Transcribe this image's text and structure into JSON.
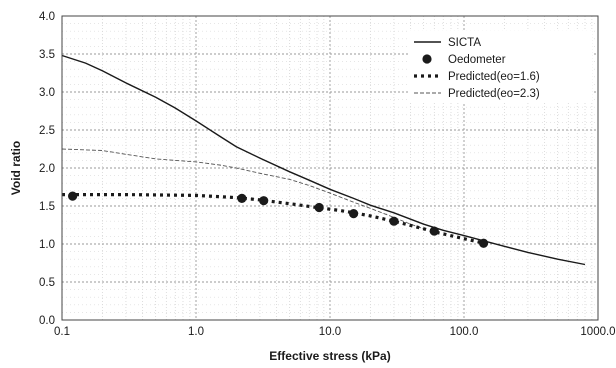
{
  "chart_data": {
    "type": "line",
    "title": "",
    "xlabel": "Effective stress (kPa)",
    "ylabel": "Void ratio",
    "xscale": "log",
    "xlim": [
      0.1,
      1000.0
    ],
    "ylim": [
      0.0,
      4.0
    ],
    "x_ticks": [
      "0.1",
      "1.0",
      "10.0",
      "100.0",
      "1000.0"
    ],
    "y_ticks": [
      "0.0",
      "0.5",
      "1.0",
      "1.5",
      "2.0",
      "2.5",
      "3.0",
      "3.5",
      "4.0"
    ],
    "grid": true,
    "legend_position": "top-right",
    "series": [
      {
        "name": "SICTA",
        "style": "solid",
        "color": "#1a1a1a",
        "x": [
          0.1,
          0.15,
          0.2,
          0.3,
          0.5,
          0.7,
          1.0,
          1.5,
          2.0,
          3.0,
          5.0,
          7.0,
          10.0,
          15.0,
          20.0,
          30.0,
          50.0,
          70.0,
          100.0,
          200.0,
          300.0,
          500.0,
          800.0
        ],
        "y": [
          3.48,
          3.38,
          3.28,
          3.12,
          2.93,
          2.79,
          2.62,
          2.42,
          2.28,
          2.13,
          1.95,
          1.84,
          1.72,
          1.6,
          1.51,
          1.41,
          1.26,
          1.18,
          1.11,
          0.97,
          0.89,
          0.8,
          0.73
        ]
      },
      {
        "name": "Oedometer",
        "style": "marker",
        "color": "#1a1a1a",
        "x": [
          0.12,
          2.2,
          3.2,
          8.3,
          15.0,
          30.0,
          60.0,
          140.0
        ],
        "y": [
          1.63,
          1.6,
          1.57,
          1.48,
          1.4,
          1.3,
          1.17,
          1.01
        ]
      },
      {
        "name": "Predicted(eo=1.6)",
        "style": "dotted-thick",
        "color": "#1a1a1a",
        "x": [
          0.1,
          0.3,
          1.0,
          2.0,
          3.0,
          5.0,
          8.0,
          12.0,
          15.0,
          20.0,
          30.0,
          50.0,
          60.0,
          100.0,
          150.0
        ],
        "y": [
          1.65,
          1.65,
          1.64,
          1.61,
          1.58,
          1.53,
          1.48,
          1.44,
          1.41,
          1.37,
          1.3,
          1.2,
          1.16,
          1.07,
          1.0
        ]
      },
      {
        "name": "Predicted(eo=2.3)",
        "style": "dashed-thin",
        "color": "#555555",
        "x": [
          0.1,
          0.2,
          0.3,
          0.5,
          0.7,
          1.0,
          1.5,
          2.0,
          3.0,
          5.0,
          7.0,
          10.0,
          15.0,
          20.0,
          30.0,
          40.0,
          50.0
        ],
        "y": [
          2.25,
          2.23,
          2.18,
          2.12,
          2.1,
          2.08,
          2.04,
          2.0,
          1.93,
          1.85,
          1.77,
          1.67,
          1.55,
          1.47,
          1.35,
          1.26,
          1.2
        ]
      }
    ]
  }
}
